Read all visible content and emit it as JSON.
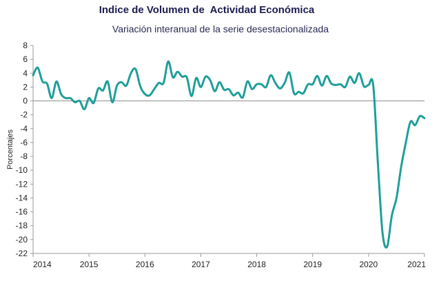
{
  "title": "Indice de Volumen de  Actividad Económica",
  "subtitle": "Variación interanual de la serie desestacionalizada",
  "chart_data": {
    "type": "line",
    "title": "Indice de Volumen de  Actividad Económica",
    "subtitle": "Variación interanual de la serie desestacionalizada",
    "xlabel": "",
    "ylabel": "Porcentajes",
    "xlim": [
      2014,
      2021
    ],
    "ylim": [
      -22,
      8
    ],
    "x_ticks": [
      "2014",
      "2015",
      "2016",
      "2017",
      "2018",
      "2019",
      "2020",
      "2021"
    ],
    "y_ticks": [
      "8",
      "6",
      "4",
      "2",
      "0",
      "-2",
      "-4",
      "-6",
      "-8",
      "-10",
      "-12",
      "-14",
      "-16",
      "-18",
      "-20",
      "-22"
    ],
    "grid": "zero-line only",
    "line_color": "#1f9e9a",
    "series": [
      {
        "x": [
          2014.0,
          2014.083,
          2014.167,
          2014.25,
          2014.333,
          2014.417,
          2014.5,
          2014.583,
          2014.667,
          2014.75,
          2014.833,
          2014.917,
          2015.0,
          2015.083,
          2015.167,
          2015.25,
          2015.333,
          2015.417,
          2015.5,
          2015.583,
          2015.667,
          2015.75,
          2015.833,
          2015.917,
          2016.0,
          2016.083,
          2016.167,
          2016.25,
          2016.333,
          2016.417,
          2016.5,
          2016.583,
          2016.667,
          2016.75,
          2016.833,
          2016.917,
          2017.0,
          2017.083,
          2017.167,
          2017.25,
          2017.333,
          2017.417,
          2017.5,
          2017.583,
          2017.667,
          2017.75,
          2017.833,
          2017.917,
          2018.0,
          2018.083,
          2018.167,
          2018.25,
          2018.333,
          2018.417,
          2018.5,
          2018.583,
          2018.667,
          2018.75,
          2018.833,
          2018.917,
          2019.0,
          2019.083,
          2019.167,
          2019.25,
          2019.333,
          2019.417,
          2019.5,
          2019.583,
          2019.667,
          2019.75,
          2019.833,
          2019.917,
          2020.0,
          2020.083,
          2020.167,
          2020.25,
          2020.333,
          2020.417,
          2020.5,
          2020.583,
          2020.667,
          2020.75,
          2020.833,
          2020.917,
          2021.0
        ],
        "values": [
          3.7,
          4.8,
          2.8,
          2.5,
          0.4,
          2.8,
          1.0,
          0.4,
          0.4,
          -0.2,
          0.0,
          -1.2,
          0.4,
          -0.3,
          1.8,
          1.5,
          2.8,
          -0.2,
          2.2,
          2.7,
          2.2,
          4.0,
          4.6,
          2.1,
          1.0,
          0.8,
          1.7,
          2.6,
          2.6,
          5.7,
          3.4,
          4.2,
          3.5,
          3.4,
          0.7,
          3.3,
          2.0,
          3.5,
          3.0,
          1.4,
          2.7,
          1.6,
          1.7,
          0.8,
          1.2,
          0.5,
          2.8,
          1.7,
          2.4,
          2.4,
          2.0,
          3.7,
          2.6,
          1.8,
          2.6,
          4.1,
          1.1,
          1.3,
          1.1,
          2.4,
          2.4,
          3.6,
          2.2,
          3.6,
          2.5,
          2.3,
          2.4,
          2.0,
          3.5,
          2.6,
          4.0,
          2.1,
          2.3,
          2.3,
          -9.0,
          -19.0,
          -21.0,
          -16.5,
          -14.0,
          -9.5,
          -6.0,
          -3.0,
          -3.5,
          -2.2,
          -2.5
        ]
      }
    ]
  }
}
